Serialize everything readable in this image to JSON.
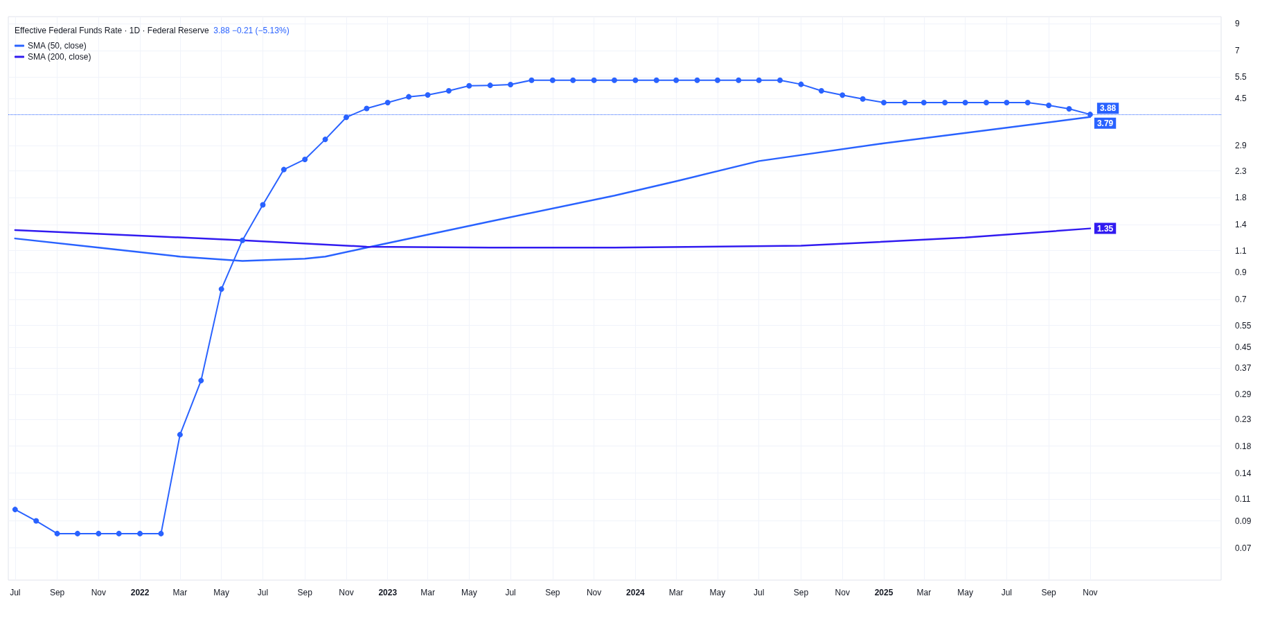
{
  "chart_data": {
    "type": "line",
    "title": "Effective Federal Funds Rate · 1D · Federal Reserve",
    "annotations": [
      "3.88 −0.21 (−5.13%)"
    ],
    "x": [
      "2021-07",
      "2021-08",
      "2021-09",
      "2021-10",
      "2021-11",
      "2021-12",
      "2022-01",
      "2022-02",
      "2022-03",
      "2022-04",
      "2022-05",
      "2022-06",
      "2022-07",
      "2022-08",
      "2022-09",
      "2022-10",
      "2022-11",
      "2022-12",
      "2023-01",
      "2023-02",
      "2023-03",
      "2023-04",
      "2023-05",
      "2023-06",
      "2023-07",
      "2023-08",
      "2023-09",
      "2023-10",
      "2023-11",
      "2023-12",
      "2024-01",
      "2024-02",
      "2024-03",
      "2024-04",
      "2024-05",
      "2024-06",
      "2024-07",
      "2024-08",
      "2024-09",
      "2024-10",
      "2024-11",
      "2024-12",
      "2025-01",
      "2025-02",
      "2025-03",
      "2025-04",
      "2025-05",
      "2025-06",
      "2025-07",
      "2025-08",
      "2025-09",
      "2025-10",
      "2025-11"
    ],
    "series": [
      {
        "color": "#2962ff",
        "marker": "circle",
        "values": [
          0.1,
          0.09,
          0.08,
          0.08,
          0.08,
          0.08,
          0.08,
          0.08,
          0.2,
          0.33,
          0.77,
          1.21,
          1.68,
          2.33,
          2.56,
          3.08,
          3.78,
          4.1,
          4.33,
          4.57,
          4.65,
          4.83,
          5.06,
          5.08,
          5.12,
          5.33,
          5.33,
          5.33,
          5.33,
          5.33,
          5.33,
          5.33,
          5.33,
          5.33,
          5.33,
          5.33,
          5.33,
          5.33,
          5.13,
          4.83,
          4.64,
          4.48,
          4.33,
          4.33,
          4.33,
          4.33,
          4.33,
          4.33,
          4.33,
          4.33,
          4.22,
          4.09,
          3.88
        ],
        "value_labels": [
          null,
          null,
          null,
          null,
          null,
          null,
          null,
          null,
          null,
          null,
          null,
          null,
          null,
          null,
          null,
          null,
          null,
          null,
          null,
          null,
          null,
          null,
          null,
          null,
          null,
          null,
          null,
          null,
          null,
          null,
          null,
          null,
          null,
          null,
          null,
          null,
          null,
          null,
          null,
          null,
          null,
          null,
          null,
          null,
          null,
          null,
          null,
          null,
          null,
          null,
          null,
          null,
          "3.88"
        ]
      },
      {
        "name": "SMA (50, close)",
        "color": "#2962ff",
        "marker": "none",
        "x": [
          "2021-07",
          "2021-11",
          "2022-03",
          "2022-06",
          "2022-09",
          "2022-10",
          "2022-12",
          "2023-06",
          "2023-12",
          "2024-03",
          "2024-07",
          "2025-01",
          "2025-06",
          "2025-11"
        ],
        "values": [
          1.23,
          1.13,
          1.04,
          1.0,
          1.02,
          1.04,
          1.13,
          1.44,
          1.83,
          2.09,
          2.52,
          2.97,
          3.35,
          3.79
        ],
        "value_labels": [
          null,
          null,
          null,
          null,
          null,
          null,
          null,
          null,
          null,
          null,
          null,
          null,
          null,
          "3.79"
        ]
      },
      {
        "name": "SMA (200, close)",
        "color": "#311bf0",
        "marker": "none",
        "x": [
          "2021-07",
          "2022-06",
          "2022-12",
          "2023-06",
          "2023-12",
          "2024-09",
          "2025-05",
          "2025-11"
        ],
        "values": [
          1.33,
          1.21,
          1.14,
          1.13,
          1.13,
          1.15,
          1.24,
          1.35
        ],
        "value_labels": [
          null,
          null,
          null,
          null,
          null,
          null,
          null,
          "1.35"
        ]
      }
    ],
    "ref_lines": [
      {
        "axis": "y",
        "value": 3.88,
        "color": "#2962ff",
        "line_style": "dotted"
      }
    ],
    "log": "y",
    "ylim": [
      0.052,
      9.6
    ],
    "yticks": [
      0.07,
      0.09,
      0.11,
      0.14,
      0.18,
      0.23,
      0.29,
      0.37,
      0.45,
      0.55,
      0.7,
      0.9,
      1.1,
      1.4,
      1.8,
      2.3,
      2.9,
      4.5,
      5.5,
      7,
      9
    ],
    "xlim": [
      "2021-06-21",
      "2026-05-13"
    ],
    "xticks": [
      {
        "value": "2021-07",
        "label": "Jul"
      },
      {
        "value": "2021-09",
        "label": "Sep"
      },
      {
        "value": "2021-11",
        "label": "Nov"
      },
      {
        "value": "2022-01",
        "label": "2022"
      },
      {
        "value": "2022-03",
        "label": "Mar"
      },
      {
        "value": "2022-05",
        "label": "May"
      },
      {
        "value": "2022-07",
        "label": "Jul"
      },
      {
        "value": "2022-09",
        "label": "Sep"
      },
      {
        "value": "2022-11",
        "label": "Nov"
      },
      {
        "value": "2023-01",
        "label": "2023"
      },
      {
        "value": "2023-03",
        "label": "Mar"
      },
      {
        "value": "2023-05",
        "label": "May"
      },
      {
        "value": "2023-07",
        "label": "Jul"
      },
      {
        "value": "2023-09",
        "label": "Sep"
      },
      {
        "value": "2023-11",
        "label": "Nov"
      },
      {
        "value": "2024-01",
        "label": "2024"
      },
      {
        "value": "2024-03",
        "label": "Mar"
      },
      {
        "value": "2024-05",
        "label": "May"
      },
      {
        "value": "2024-07",
        "label": "Jul"
      },
      {
        "value": "2024-09",
        "label": "Sep"
      },
      {
        "value": "2024-11",
        "label": "Nov"
      },
      {
        "value": "2025-01",
        "label": "2025"
      },
      {
        "value": "2025-03",
        "label": "Mar"
      },
      {
        "value": "2025-05",
        "label": "May"
      },
      {
        "value": "2025-07",
        "label": "Jul"
      },
      {
        "value": "2025-09",
        "label": "Sep"
      },
      {
        "value": "2025-11",
        "label": "Nov"
      }
    ],
    "grid": true,
    "legend": "top left",
    "line_style": "solid"
  }
}
